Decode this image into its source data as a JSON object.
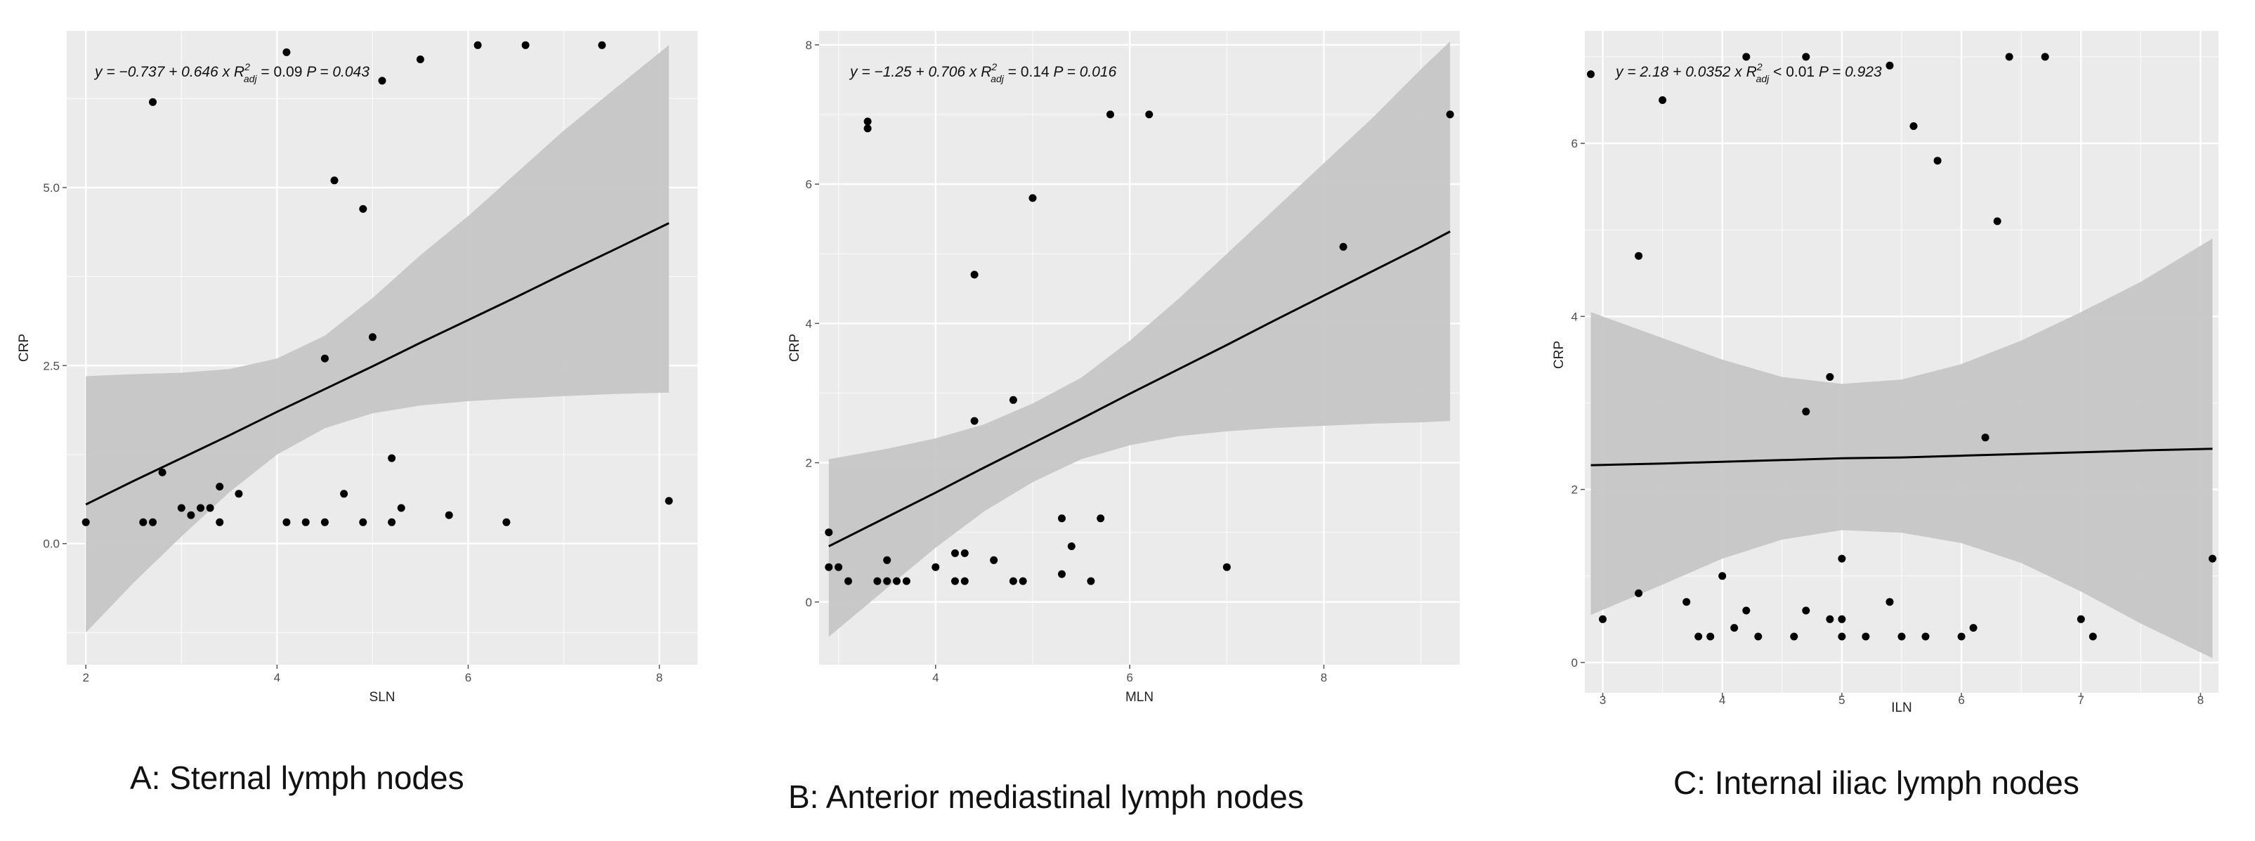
{
  "colors": {
    "panel_bg": "#ebebeb",
    "grid": "#ffffff",
    "ribbon": "#c6c6c6",
    "line": "#000000",
    "point": "#000000"
  },
  "chart_data": [
    {
      "type": "scatter",
      "caption": "A: Sternal lymph nodes",
      "xlabel": "SLN",
      "ylabel": "CRP",
      "xlim": [
        1.8,
        8.4
      ],
      "ylim": [
        -1.7,
        7.2
      ],
      "x_ticks": [
        2,
        4,
        6,
        8
      ],
      "x_tick_labels": [
        "2",
        "4",
        "6",
        "8"
      ],
      "y_ticks": [
        0,
        2.5,
        5
      ],
      "y_tick_labels": [
        "0.0",
        "2.5",
        "5.0"
      ],
      "grid": true,
      "legend": "none",
      "equation": {
        "prefix": "y = −0.737 + 0.646 x",
        "r2_sym": "R",
        "r2_sup": "2",
        "r2_sub": "adj",
        "r2_rest": "= 0.09",
        "p": "P = 0.043"
      },
      "fit": {
        "x": [
          2.0,
          2.5,
          3.0,
          3.5,
          4.0,
          4.5,
          5.0,
          5.5,
          6.0,
          6.5,
          7.0,
          7.5,
          8.1
        ],
        "y": [
          0.55,
          0.88,
          1.2,
          1.52,
          1.85,
          2.17,
          2.49,
          2.82,
          3.14,
          3.46,
          3.79,
          4.11,
          4.5
        ],
        "lower": [
          -1.25,
          -0.55,
          0.1,
          0.72,
          1.25,
          1.62,
          1.83,
          1.94,
          2.0,
          2.04,
          2.07,
          2.1,
          2.12
        ],
        "upper": [
          2.35,
          2.38,
          2.4,
          2.45,
          2.6,
          2.92,
          3.45,
          4.05,
          4.6,
          5.2,
          5.8,
          6.35,
          7.0
        ]
      },
      "points": {
        "x": [
          2.0,
          2.6,
          2.7,
          2.7,
          2.8,
          3.0,
          3.1,
          3.2,
          3.3,
          3.4,
          3.4,
          3.6,
          4.1,
          4.1,
          4.3,
          4.5,
          4.5,
          4.6,
          4.7,
          4.9,
          4.9,
          5.0,
          5.1,
          5.2,
          5.2,
          5.3,
          5.5,
          5.8,
          6.1,
          6.4,
          6.6,
          7.4,
          8.1
        ],
        "y": [
          0.3,
          0.3,
          0.3,
          6.2,
          1.0,
          0.5,
          0.4,
          0.5,
          0.5,
          0.8,
          0.3,
          0.7,
          0.3,
          6.9,
          0.3,
          0.3,
          2.6,
          5.1,
          0.7,
          0.3,
          4.7,
          2.9,
          6.5,
          0.3,
          1.2,
          0.5,
          6.8,
          0.4,
          7.0,
          0.3,
          7.0,
          7.0,
          0.6
        ]
      }
    },
    {
      "type": "scatter",
      "caption": "B: Anterior mediastinal lymph nodes",
      "xlabel": "MLN",
      "ylabel": "CRP",
      "xlim": [
        2.8,
        9.4
      ],
      "ylim": [
        -0.9,
        8.2
      ],
      "x_ticks": [
        4,
        6,
        8
      ],
      "x_tick_labels": [
        "4",
        "6",
        "8"
      ],
      "y_ticks": [
        0,
        2,
        4,
        6,
        8
      ],
      "y_tick_labels": [
        "0",
        "2",
        "4",
        "6",
        "8"
      ],
      "grid": true,
      "legend": "none",
      "equation": {
        "prefix": "y = −1.25 + 0.706 x",
        "r2_sym": "R",
        "r2_sup": "2",
        "r2_sub": "adj",
        "r2_rest": "= 0.14",
        "p": "P = 0.016"
      },
      "fit": {
        "x": [
          2.9,
          3.5,
          4.0,
          4.5,
          5.0,
          5.5,
          6.0,
          6.5,
          7.0,
          7.5,
          8.0,
          8.5,
          9.0,
          9.3
        ],
        "y": [
          0.8,
          1.22,
          1.57,
          1.93,
          2.28,
          2.63,
          2.99,
          3.34,
          3.69,
          4.05,
          4.4,
          4.75,
          5.1,
          5.32
        ],
        "lower": [
          -0.5,
          0.2,
          0.78,
          1.3,
          1.72,
          2.05,
          2.25,
          2.38,
          2.45,
          2.5,
          2.53,
          2.56,
          2.58,
          2.6
        ],
        "upper": [
          2.05,
          2.2,
          2.35,
          2.55,
          2.85,
          3.22,
          3.75,
          4.35,
          5.0,
          5.65,
          6.3,
          6.95,
          7.65,
          8.05
        ]
      },
      "points": {
        "x": [
          2.9,
          2.9,
          3.0,
          3.1,
          3.3,
          3.3,
          3.4,
          3.5,
          3.5,
          3.6,
          3.7,
          4.0,
          4.2,
          4.2,
          4.3,
          4.3,
          4.4,
          4.4,
          4.6,
          4.8,
          4.8,
          4.9,
          5.0,
          5.3,
          5.3,
          5.4,
          5.6,
          5.7,
          5.8,
          6.2,
          7.0,
          8.2,
          9.3
        ],
        "y": [
          0.5,
          1.0,
          0.5,
          0.3,
          6.8,
          6.9,
          0.3,
          0.6,
          0.3,
          0.3,
          0.3,
          0.5,
          0.3,
          0.7,
          0.3,
          0.7,
          4.7,
          2.6,
          0.6,
          0.3,
          2.9,
          0.3,
          5.8,
          1.2,
          0.4,
          0.8,
          0.3,
          1.2,
          7.0,
          7.0,
          0.5,
          5.1,
          7.0
        ]
      }
    },
    {
      "type": "scatter",
      "caption": "C: Internal iliac lymph nodes",
      "xlabel": "ILN",
      "ylabel": "CRP",
      "xlim": [
        2.85,
        8.15
      ],
      "ylim": [
        -0.35,
        7.3
      ],
      "x_ticks": [
        3,
        4,
        5,
        6,
        7,
        8
      ],
      "x_tick_labels": [
        "3",
        "4",
        "5",
        "6",
        "7",
        "8"
      ],
      "y_ticks": [
        0,
        2,
        4,
        6
      ],
      "y_tick_labels": [
        "0",
        "2",
        "4",
        "6"
      ],
      "grid": true,
      "legend": "none",
      "equation": {
        "prefix": "y = 2.18 + 0.0352 x",
        "r2_sym": "R",
        "r2_sup": "2",
        "r2_sub": "adj",
        "r2_rest": "< 0.01",
        "p": "P = 0.923"
      },
      "fit": {
        "x": [
          2.9,
          3.5,
          4.0,
          4.5,
          5.0,
          5.5,
          6.0,
          6.5,
          7.0,
          7.5,
          8.1
        ],
        "y": [
          2.28,
          2.3,
          2.32,
          2.34,
          2.36,
          2.37,
          2.39,
          2.41,
          2.43,
          2.45,
          2.47
        ],
        "lower": [
          0.55,
          0.9,
          1.2,
          1.42,
          1.53,
          1.5,
          1.38,
          1.15,
          0.82,
          0.45,
          0.05
        ],
        "upper": [
          4.05,
          3.75,
          3.5,
          3.3,
          3.22,
          3.27,
          3.45,
          3.72,
          4.05,
          4.4,
          4.9
        ]
      },
      "points": {
        "x": [
          2.9,
          3.0,
          3.3,
          3.3,
          3.5,
          3.7,
          3.8,
          3.9,
          4.0,
          4.1,
          4.2,
          4.2,
          4.3,
          4.6,
          4.7,
          4.7,
          4.7,
          4.9,
          4.9,
          5.0,
          5.0,
          5.0,
          5.2,
          5.4,
          5.4,
          5.5,
          5.6,
          5.7,
          5.8,
          6.0,
          6.1,
          6.2,
          6.3,
          6.4,
          6.7,
          7.0,
          7.1,
          8.1
        ],
        "y": [
          6.8,
          0.5,
          0.8,
          4.7,
          6.5,
          0.7,
          0.3,
          0.3,
          1.0,
          0.4,
          0.6,
          7.0,
          0.3,
          0.3,
          0.6,
          2.9,
          7.0,
          0.5,
          3.3,
          0.3,
          0.5,
          1.2,
          0.3,
          0.7,
          6.9,
          0.3,
          6.2,
          0.3,
          5.8,
          0.3,
          0.4,
          2.6,
          5.1,
          7.0,
          7.0,
          0.5,
          0.3,
          1.2
        ]
      }
    }
  ]
}
